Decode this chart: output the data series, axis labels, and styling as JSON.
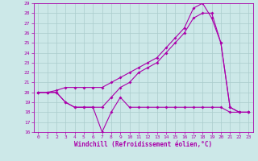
{
  "xlabel": "Windchill (Refroidissement éolien,°C)",
  "bg_color": "#cce8e8",
  "grid_color": "#aacccc",
  "line_color": "#aa00aa",
  "xlim": [
    -0.5,
    23.5
  ],
  "ylim": [
    16,
    29
  ],
  "xticks": [
    0,
    1,
    2,
    3,
    4,
    5,
    6,
    7,
    8,
    9,
    10,
    11,
    12,
    13,
    14,
    15,
    16,
    17,
    18,
    19,
    20,
    21,
    22,
    23
  ],
  "yticks": [
    16,
    17,
    18,
    19,
    20,
    21,
    22,
    23,
    24,
    25,
    26,
    27,
    28,
    29
  ],
  "series1_x": [
    0,
    1,
    2,
    3,
    4,
    5,
    6,
    7,
    8,
    9,
    10,
    11,
    12,
    13,
    14,
    15,
    16,
    17,
    18,
    19,
    20,
    21,
    22,
    23
  ],
  "series1_y": [
    20.0,
    20.0,
    20.2,
    20.5,
    20.5,
    20.5,
    20.5,
    20.5,
    21.0,
    21.5,
    22.0,
    22.5,
    23.0,
    23.5,
    24.5,
    25.5,
    26.5,
    28.5,
    29.0,
    27.5,
    25.0,
    18.5,
    18.0,
    18.0
  ],
  "series2_x": [
    0,
    1,
    2,
    3,
    4,
    5,
    6,
    7,
    8,
    9,
    10,
    11,
    12,
    13,
    14,
    15,
    16,
    17,
    18,
    19,
    20,
    21,
    22,
    23
  ],
  "series2_y": [
    20.0,
    20.0,
    20.0,
    19.0,
    18.5,
    18.5,
    18.5,
    18.5,
    19.5,
    20.5,
    21.0,
    22.0,
    22.5,
    23.0,
    24.0,
    25.0,
    26.0,
    27.5,
    28.0,
    28.0,
    25.0,
    18.5,
    18.0,
    18.0
  ],
  "series3_x": [
    0,
    1,
    2,
    3,
    4,
    5,
    6,
    7,
    8,
    9,
    10,
    11,
    12,
    13,
    14,
    15,
    16,
    17,
    18,
    19,
    20,
    21,
    22,
    23
  ],
  "series3_y": [
    20.0,
    20.0,
    20.0,
    19.0,
    18.5,
    18.5,
    18.5,
    16.0,
    18.0,
    19.5,
    18.5,
    18.5,
    18.5,
    18.5,
    18.5,
    18.5,
    18.5,
    18.5,
    18.5,
    18.5,
    18.5,
    18.0,
    18.0,
    18.0
  ]
}
